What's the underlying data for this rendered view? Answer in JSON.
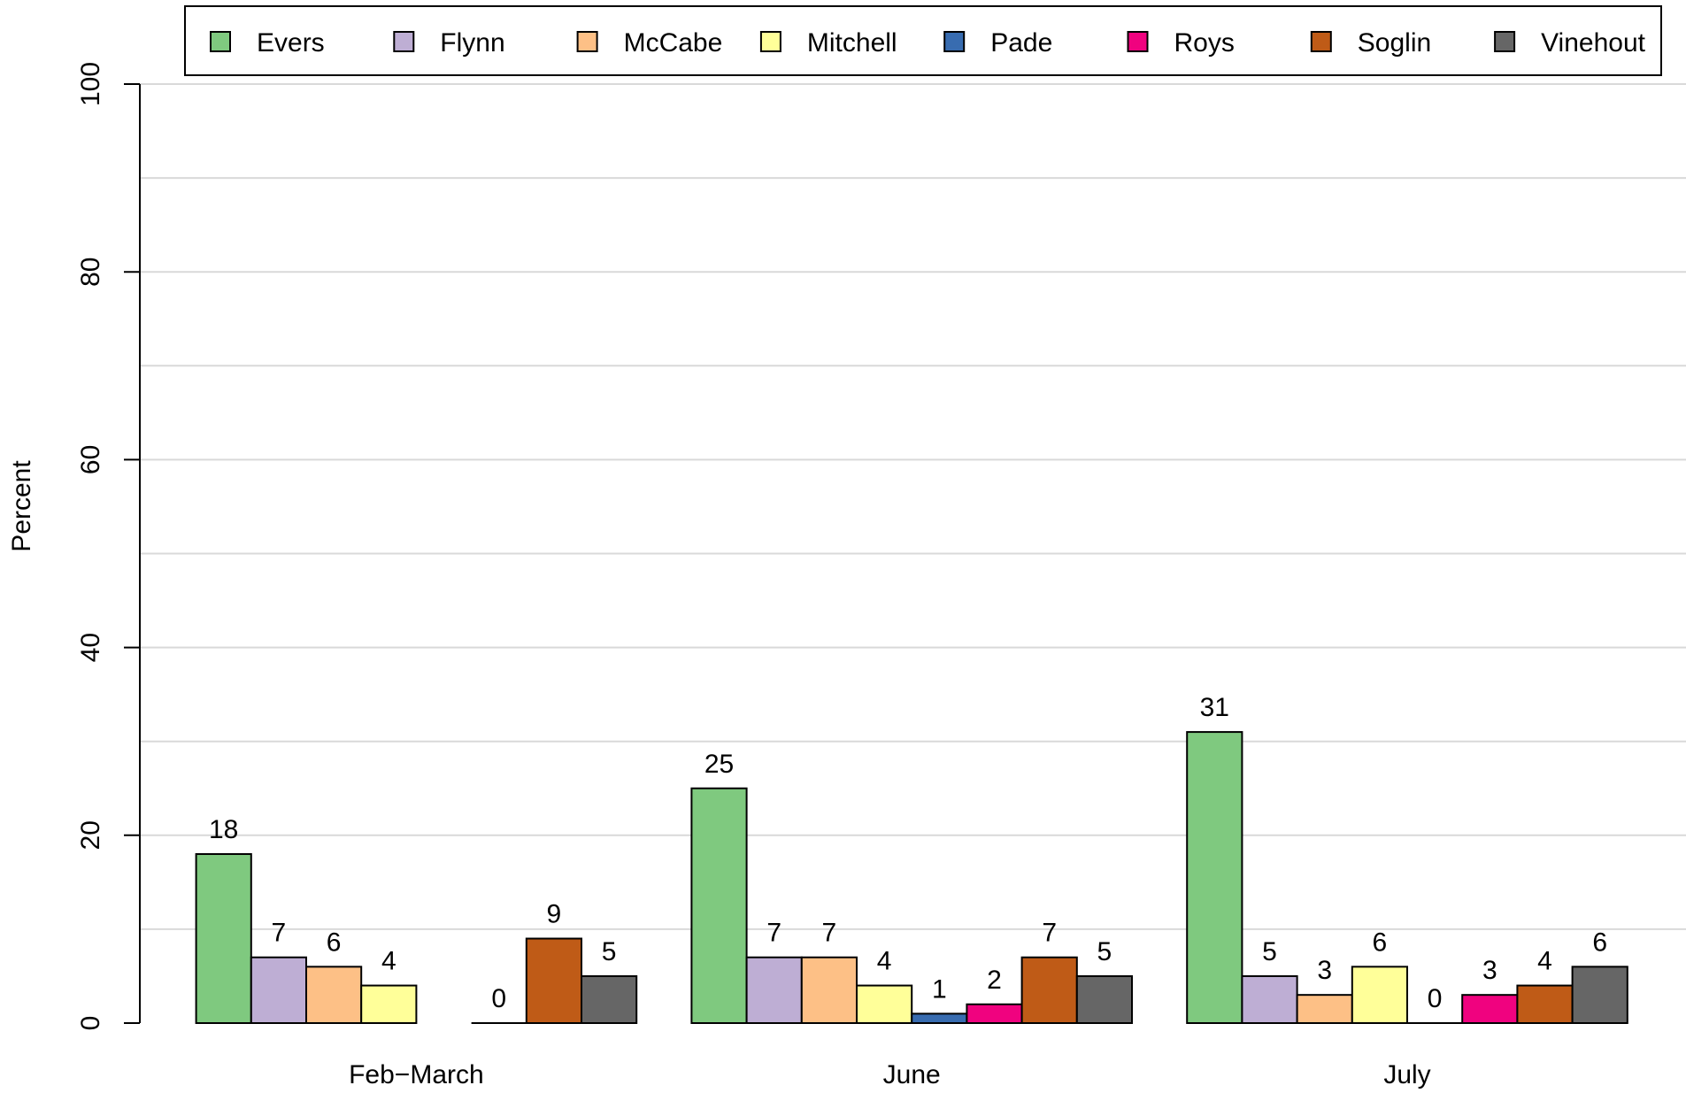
{
  "chart_data": {
    "type": "bar",
    "title": "",
    "xlabel": "",
    "ylabel": "Percent",
    "ylim": [
      0,
      100
    ],
    "yticks": [
      0,
      20,
      40,
      60,
      80,
      100
    ],
    "grid": "horizontal lines every 10",
    "legend_position": "top",
    "categories": [
      "Feb−March",
      "June",
      "July"
    ],
    "series": [
      {
        "name": "Evers",
        "color": "#7fc97f",
        "values": [
          18,
          25,
          31
        ]
      },
      {
        "name": "Flynn",
        "color": "#beaed4",
        "values": [
          7,
          7,
          5
        ]
      },
      {
        "name": "McCabe",
        "color": "#fdc086",
        "values": [
          6,
          7,
          3
        ]
      },
      {
        "name": "Mitchell",
        "color": "#ffff99",
        "values": [
          4,
          4,
          6
        ]
      },
      {
        "name": "Pade",
        "color": "#386cb0",
        "values": [
          null,
          1,
          0
        ]
      },
      {
        "name": "Roys",
        "color": "#f0027f",
        "values": [
          0,
          2,
          3
        ]
      },
      {
        "name": "Soglin",
        "color": "#bf5b17",
        "values": [
          9,
          7,
          4
        ]
      },
      {
        "name": "Vinehout",
        "color": "#666666",
        "values": [
          5,
          5,
          6
        ]
      }
    ]
  }
}
